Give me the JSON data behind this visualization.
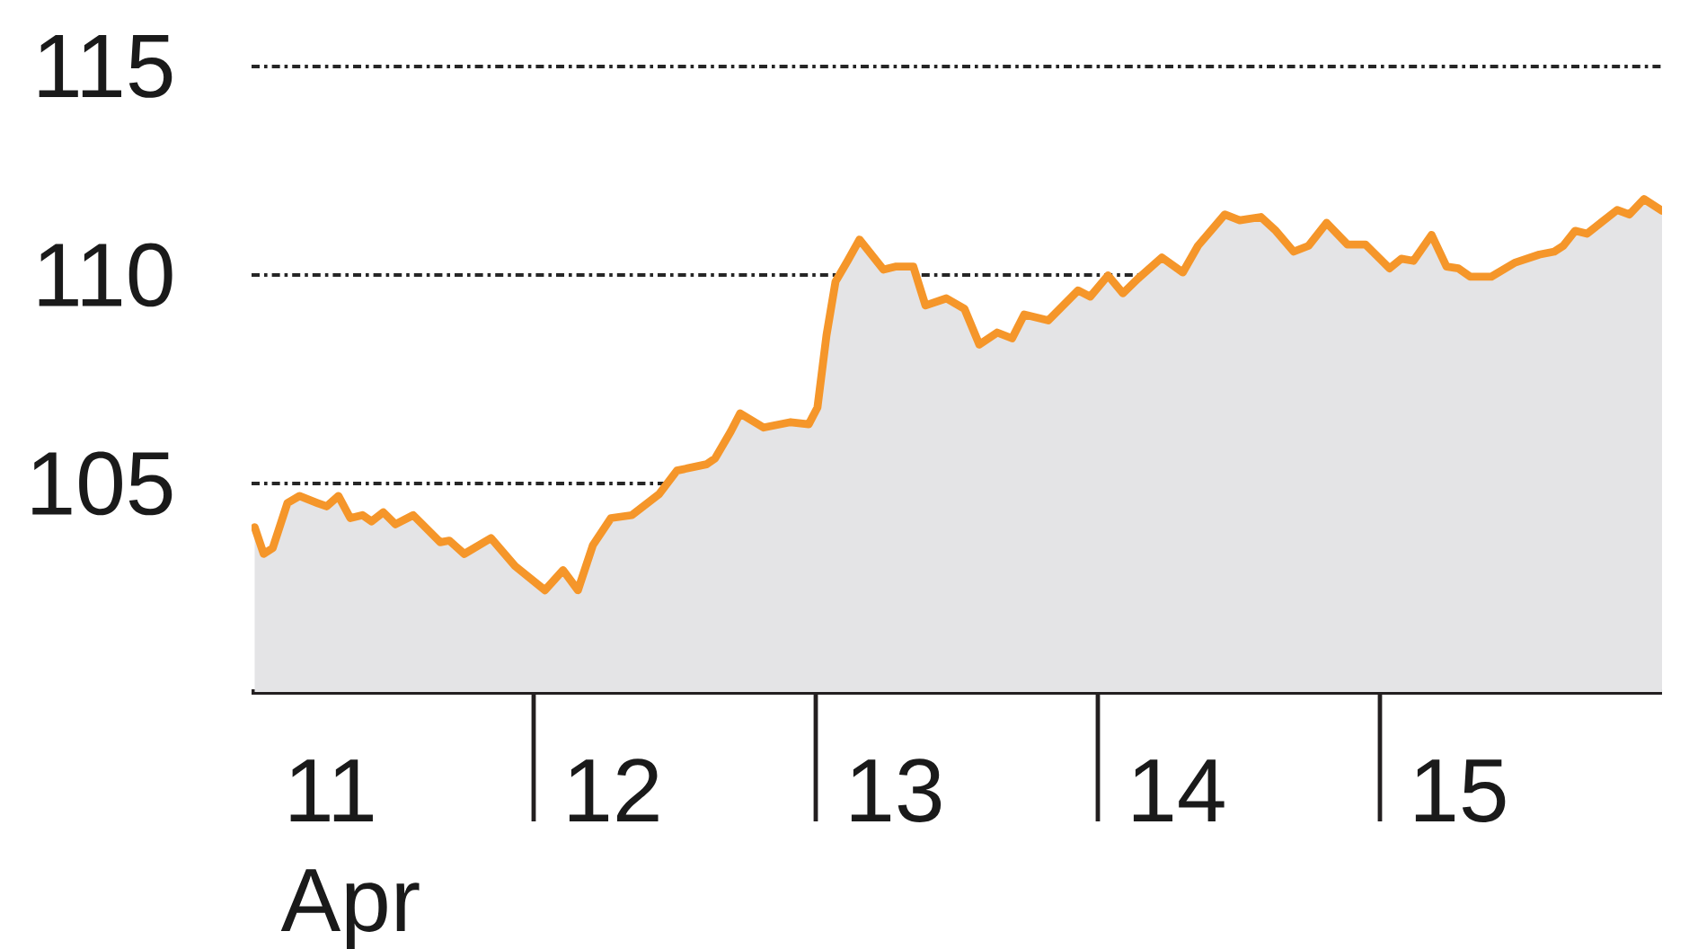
{
  "chart_data": {
    "type": "area",
    "xlabel": "Apr",
    "color": "#e4e4e6",
    "x": [
      11.011,
      11.043,
      11.075,
      11.127,
      11.17,
      11.234,
      11.266,
      11.308,
      11.35,
      11.393,
      11.425,
      11.467,
      11.51,
      11.573,
      11.669,
      11.701,
      11.754,
      11.849,
      11.934,
      12.04,
      12.104,
      12.157,
      12.21,
      12.274,
      12.348,
      12.444,
      12.508,
      12.613,
      12.643,
      12.699,
      12.732,
      12.815,
      12.911,
      12.975,
      13.006,
      13.038,
      13.07,
      13.113,
      13.155,
      13.24,
      13.282,
      13.346,
      13.389,
      13.463,
      13.527,
      13.58,
      13.643,
      13.696,
      13.739,
      13.824,
      13.93,
      13.973,
      14.036,
      14.089,
      14.142,
      14.227,
      14.301,
      14.355,
      14.45,
      14.503,
      14.578,
      14.631,
      14.694,
      14.747,
      14.811,
      14.885,
      14.949,
      15.034,
      15.076,
      15.119,
      15.183,
      15.236,
      15.278,
      15.32,
      15.395,
      15.48,
      15.565,
      15.618,
      15.65,
      15.692,
      15.734,
      15.841,
      15.884,
      15.936,
      16.0
    ],
    "values": [
      103.95,
      103.31,
      103.45,
      104.53,
      104.7,
      104.53,
      104.45,
      104.7,
      104.17,
      104.24,
      104.09,
      104.31,
      104.02,
      104.24,
      103.59,
      103.63,
      103.31,
      103.69,
      103.02,
      102.44,
      102.92,
      102.44,
      103.52,
      104.17,
      104.24,
      104.74,
      105.31,
      105.46,
      105.6,
      106.25,
      106.68,
      106.34,
      106.47,
      106.42,
      106.82,
      108.55,
      109.84,
      110.34,
      110.85,
      110.13,
      110.2,
      110.2,
      109.27,
      109.44,
      109.19,
      108.33,
      108.62,
      108.48,
      109.05,
      108.91,
      109.63,
      109.48,
      109.99,
      109.56,
      109.91,
      110.42,
      110.06,
      110.7,
      111.45,
      111.31,
      111.39,
      111.06,
      110.56,
      110.7,
      111.25,
      110.73,
      110.73,
      110.16,
      110.39,
      110.34,
      110.96,
      110.2,
      110.16,
      109.96,
      109.96,
      110.3,
      110.49,
      110.56,
      110.7,
      111.06,
      110.99,
      111.56,
      111.45,
      111.82,
      111.54
    ],
    "xlim": [
      11,
      16
    ],
    "xticks": [
      {
        "value": 11.28,
        "label": "11"
      },
      {
        "value": 12.28,
        "label": "12"
      },
      {
        "value": 13.28,
        "label": "13"
      },
      {
        "value": 14.28,
        "label": "14"
      },
      {
        "value": 15.28,
        "label": "15"
      }
    ],
    "ylim": [
      100,
      115
    ],
    "yticks": [
      105,
      110,
      115
    ],
    "grid": "y"
  }
}
